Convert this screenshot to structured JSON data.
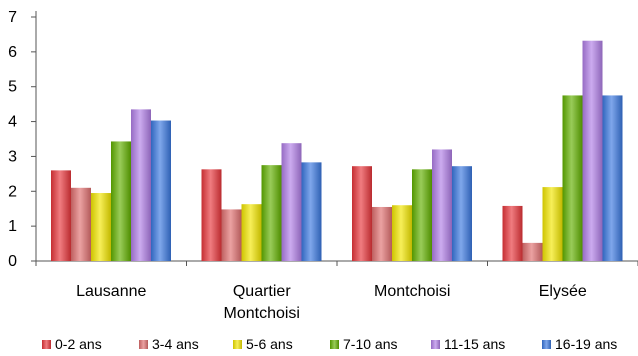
{
  "chart_data": {
    "type": "bar",
    "categories": [
      "Lausanne",
      "Quartier\nMontchoisi",
      "Montchoisi",
      "Elysée"
    ],
    "ylim": [
      0,
      7
    ],
    "yticks": [
      0,
      1,
      2,
      3,
      4,
      5,
      6,
      7
    ],
    "grid": false,
    "legend_position": "bottom",
    "series": [
      {
        "name": "0-2 ans",
        "color": "#e8363b",
        "values": [
          2.6,
          2.63,
          2.72,
          1.58
        ]
      },
      {
        "name": "3-4 ans",
        "color": "#e07070",
        "values": [
          2.1,
          1.48,
          1.55,
          0.52
        ]
      },
      {
        "name": "5-6 ans",
        "color": "#f2e600",
        "values": [
          1.95,
          1.63,
          1.6,
          2.12
        ]
      },
      {
        "name": "7-10 ans",
        "color": "#62b000",
        "values": [
          3.43,
          2.75,
          2.63,
          4.75
        ]
      },
      {
        "name": "11-15 ans",
        "color": "#b07ee6",
        "values": [
          4.35,
          3.38,
          3.2,
          6.32
        ]
      },
      {
        "name": "16-19 ans",
        "color": "#3a78e0",
        "values": [
          4.03,
          2.83,
          2.72,
          4.75
        ]
      }
    ]
  }
}
